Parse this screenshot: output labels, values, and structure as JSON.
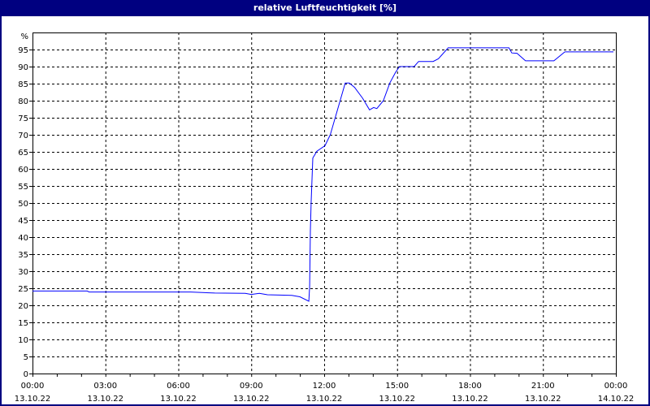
{
  "chart_data": {
    "type": "line",
    "title": "relative Luftfeuchtigkeit [%]",
    "ylabel": "%",
    "ylim": [
      0,
      100
    ],
    "yticks": [
      0,
      5,
      10,
      15,
      20,
      25,
      30,
      35,
      40,
      45,
      50,
      55,
      60,
      65,
      70,
      75,
      80,
      85,
      90,
      95
    ],
    "xlim": [
      "13.10.22 00:00",
      "14.10.22 00:00"
    ],
    "xticks": [
      {
        "time": "00:00",
        "date": "13.10.22"
      },
      {
        "time": "03:00",
        "date": "13.10.22"
      },
      {
        "time": "06:00",
        "date": "13.10.22"
      },
      {
        "time": "09:00",
        "date": "13.10.22"
      },
      {
        "time": "12:00",
        "date": "13.10.22"
      },
      {
        "time": "15:00",
        "date": "13.10.22"
      },
      {
        "time": "18:00",
        "date": "13.10.22"
      },
      {
        "time": "21:00",
        "date": "13.10.22"
      },
      {
        "time": "00:00",
        "date": "14.10.22"
      }
    ],
    "grid": true,
    "line_color": "#0000ff",
    "series": [
      {
        "x": [
          "00:00",
          "02:15",
          "02:20",
          "06:30",
          "07:30",
          "08:45",
          "09:00",
          "09:20",
          "09:40",
          "10:40",
          "11:00",
          "11:22",
          "11:24",
          "11:26",
          "11:28",
          "11:32",
          "11:42",
          "12:02",
          "12:15",
          "12:52",
          "13:02",
          "13:15",
          "13:35",
          "13:52",
          "14:02",
          "14:10",
          "14:26",
          "14:42",
          "14:56",
          "15:06",
          "15:42",
          "15:53",
          "16:29",
          "16:42",
          "17:06",
          "19:36",
          "19:43",
          "19:56",
          "20:17",
          "21:27",
          "21:54",
          "23:54"
        ],
        "y": [
          24.2,
          24.2,
          23.9,
          23.9,
          23.6,
          23.5,
          23.2,
          23.5,
          23.1,
          22.9,
          22.5,
          21.2,
          25.5,
          42,
          50.6,
          63.2,
          65.2,
          66.8,
          70,
          85.2,
          85.2,
          83.9,
          80.7,
          77.3,
          78,
          77.7,
          80,
          85.2,
          88.3,
          90,
          90,
          91.5,
          91.5,
          92.3,
          95.5,
          95.5,
          94,
          93.9,
          91.7,
          91.7,
          94.3,
          94.3
        ]
      }
    ]
  }
}
